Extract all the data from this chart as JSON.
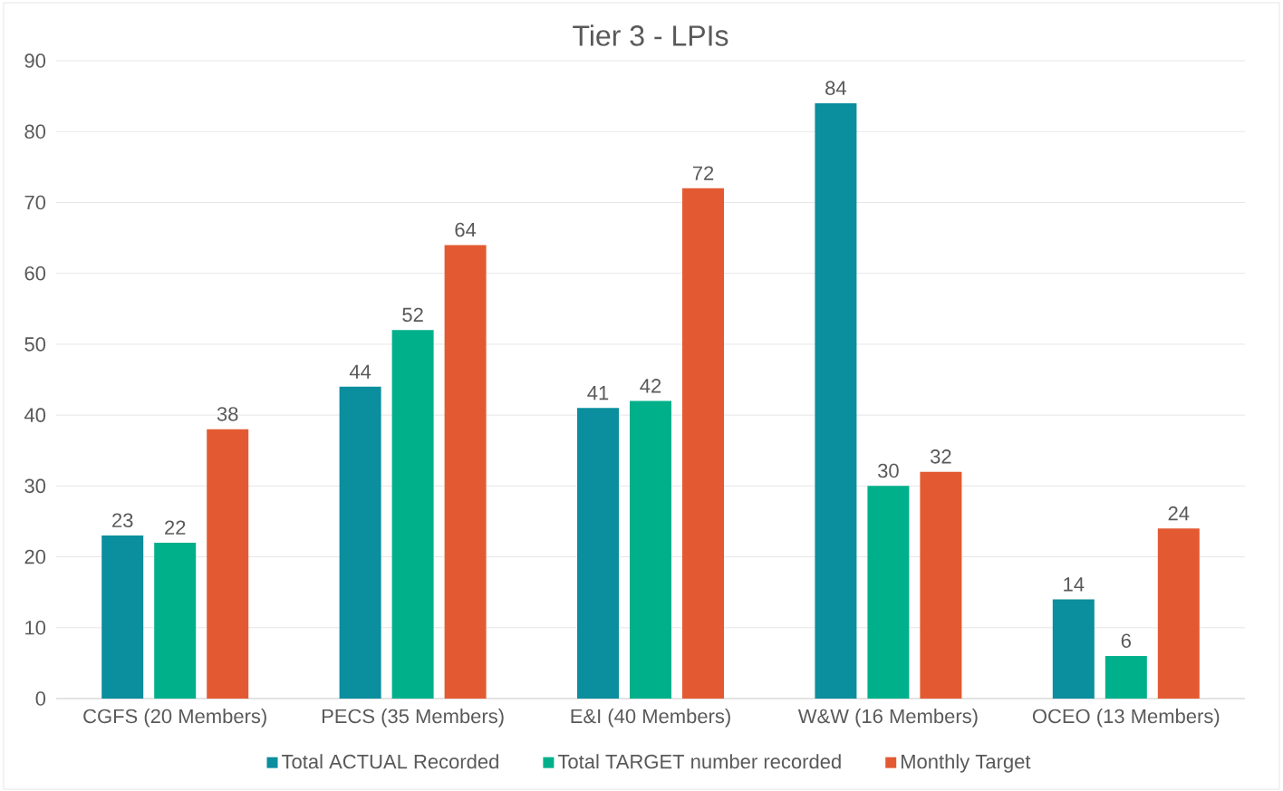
{
  "chart_data": {
    "type": "bar",
    "title": "Tier 3 - LPIs",
    "categories": [
      "CGFS (20 Members)",
      "PECS (35 Members)",
      "E&I (40 Members)",
      "W&W (16 Members)",
      "OCEO (13 Members)"
    ],
    "series": [
      {
        "name": "Total ACTUAL  Recorded",
        "color": "#0b8e9e",
        "values": [
          23,
          44,
          41,
          84,
          14
        ]
      },
      {
        "name": "Total TARGET number recorded",
        "color": "#00b08a",
        "values": [
          22,
          52,
          42,
          30,
          6
        ]
      },
      {
        "name": "Monthly Target",
        "color": "#e35a32",
        "values": [
          38,
          64,
          72,
          32,
          24
        ]
      }
    ],
    "ylim": [
      0,
      90
    ],
    "yticks": [
      0,
      10,
      20,
      30,
      40,
      50,
      60,
      70,
      80,
      90
    ],
    "grid": "y",
    "legend": "bottom",
    "data_labels": true
  }
}
